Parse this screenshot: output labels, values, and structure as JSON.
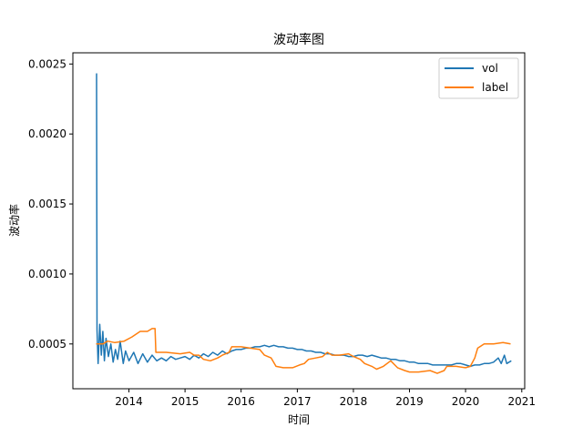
{
  "chart_data": {
    "type": "line",
    "title": "波动率图",
    "xlabel": "时间",
    "ylabel": "波动率",
    "xlim": [
      "2013-01-01",
      "2021-01-20"
    ],
    "ylim": [
      0.00018,
      0.00258
    ],
    "xticks": [
      "2014",
      "2015",
      "2016",
      "2017",
      "2018",
      "2019",
      "2020",
      "2021"
    ],
    "yticks": [
      "0.0005",
      "0.0010",
      "0.0015",
      "0.0020",
      "0.0025"
    ],
    "grid": false,
    "legend_position": "top-right",
    "series": [
      {
        "name": "vol",
        "color": "#1f77b4",
        "points": [
          [
            "2013-06-01",
            0.00243
          ],
          [
            "2013-06-04",
            0.00243
          ],
          [
            "2013-06-07",
            0.0006
          ],
          [
            "2013-06-14",
            0.00036
          ],
          [
            "2013-06-25",
            0.00064
          ],
          [
            "2013-07-05",
            0.00042
          ],
          [
            "2013-07-15",
            0.00059
          ],
          [
            "2013-07-25",
            0.00038
          ],
          [
            "2013-08-05",
            0.00054
          ],
          [
            "2013-08-20",
            0.00041
          ],
          [
            "2013-09-05",
            0.0005
          ],
          [
            "2013-09-20",
            0.00037
          ],
          [
            "2013-10-05",
            0.00046
          ],
          [
            "2013-10-20",
            0.00039
          ],
          [
            "2013-11-05",
            0.00052
          ],
          [
            "2013-11-25",
            0.00036
          ],
          [
            "2013-12-10",
            0.00045
          ],
          [
            "2014-01-01",
            0.00038
          ],
          [
            "2014-02-01",
            0.00044
          ],
          [
            "2014-03-01",
            0.00036
          ],
          [
            "2014-04-01",
            0.00043
          ],
          [
            "2014-05-01",
            0.00037
          ],
          [
            "2014-06-01",
            0.00042
          ],
          [
            "2014-07-01",
            0.00038
          ],
          [
            "2014-08-01",
            0.0004
          ],
          [
            "2014-09-01",
            0.00038
          ],
          [
            "2014-10-01",
            0.00041
          ],
          [
            "2014-11-01",
            0.00039
          ],
          [
            "2014-12-01",
            0.0004
          ],
          [
            "2015-01-01",
            0.00041
          ],
          [
            "2015-02-01",
            0.00039
          ],
          [
            "2015-03-01",
            0.00042
          ],
          [
            "2015-04-01",
            0.0004
          ],
          [
            "2015-05-01",
            0.00043
          ],
          [
            "2015-06-01",
            0.00041
          ],
          [
            "2015-07-01",
            0.00044
          ],
          [
            "2015-08-01",
            0.00042
          ],
          [
            "2015-09-01",
            0.00045
          ],
          [
            "2015-10-01",
            0.00043
          ],
          [
            "2015-11-01",
            0.00045
          ],
          [
            "2015-12-01",
            0.00046
          ],
          [
            "2016-01-01",
            0.00046
          ],
          [
            "2016-02-01",
            0.00047
          ],
          [
            "2016-03-01",
            0.00047
          ],
          [
            "2016-04-01",
            0.00048
          ],
          [
            "2016-05-01",
            0.00048
          ],
          [
            "2016-06-01",
            0.00049
          ],
          [
            "2016-07-01",
            0.00048
          ],
          [
            "2016-08-01",
            0.00049
          ],
          [
            "2016-09-01",
            0.00048
          ],
          [
            "2016-10-01",
            0.00048
          ],
          [
            "2016-11-01",
            0.00047
          ],
          [
            "2016-12-01",
            0.00047
          ],
          [
            "2017-01-01",
            0.00046
          ],
          [
            "2017-02-01",
            0.00046
          ],
          [
            "2017-03-01",
            0.00045
          ],
          [
            "2017-04-01",
            0.00045
          ],
          [
            "2017-05-01",
            0.00044
          ],
          [
            "2017-06-01",
            0.00044
          ],
          [
            "2017-07-01",
            0.00043
          ],
          [
            "2017-08-01",
            0.00043
          ],
          [
            "2017-09-01",
            0.00042
          ],
          [
            "2017-10-01",
            0.00042
          ],
          [
            "2017-11-01",
            0.00042
          ],
          [
            "2017-12-01",
            0.00041
          ],
          [
            "2018-01-01",
            0.00041
          ],
          [
            "2018-02-01",
            0.00042
          ],
          [
            "2018-03-01",
            0.00042
          ],
          [
            "2018-04-01",
            0.00041
          ],
          [
            "2018-05-01",
            0.00042
          ],
          [
            "2018-06-01",
            0.00041
          ],
          [
            "2018-07-01",
            0.0004
          ],
          [
            "2018-08-01",
            0.0004
          ],
          [
            "2018-09-01",
            0.00039
          ],
          [
            "2018-10-01",
            0.00039
          ],
          [
            "2018-11-01",
            0.00038
          ],
          [
            "2018-12-01",
            0.00038
          ],
          [
            "2019-01-01",
            0.00037
          ],
          [
            "2019-02-01",
            0.00037
          ],
          [
            "2019-03-01",
            0.00036
          ],
          [
            "2019-04-01",
            0.00036
          ],
          [
            "2019-05-01",
            0.00036
          ],
          [
            "2019-06-01",
            0.00035
          ],
          [
            "2019-07-01",
            0.00035
          ],
          [
            "2019-08-01",
            0.00035
          ],
          [
            "2019-09-01",
            0.00035
          ],
          [
            "2019-10-01",
            0.00035
          ],
          [
            "2019-11-01",
            0.00036
          ],
          [
            "2019-12-01",
            0.00036
          ],
          [
            "2020-01-01",
            0.00035
          ],
          [
            "2020-02-01",
            0.00034
          ],
          [
            "2020-03-01",
            0.00035
          ],
          [
            "2020-04-01",
            0.00035
          ],
          [
            "2020-05-01",
            0.00036
          ],
          [
            "2020-06-01",
            0.00036
          ],
          [
            "2020-07-01",
            0.00037
          ],
          [
            "2020-08-01",
            0.0004
          ],
          [
            "2020-08-20",
            0.00036
          ],
          [
            "2020-09-10",
            0.00042
          ],
          [
            "2020-09-25",
            0.00036
          ],
          [
            "2020-10-10",
            0.00037
          ],
          [
            "2020-10-25",
            0.00038
          ]
        ]
      },
      {
        "name": "label",
        "color": "#ff7f0e",
        "points": [
          [
            "2013-06-01",
            0.0005
          ],
          [
            "2013-07-15",
            0.0005
          ],
          [
            "2013-08-15",
            0.00052
          ],
          [
            "2013-10-01",
            0.00051
          ],
          [
            "2013-12-01",
            0.00052
          ],
          [
            "2014-01-20",
            0.00055
          ],
          [
            "2014-03-15",
            0.00059
          ],
          [
            "2014-05-01",
            0.00059
          ],
          [
            "2014-06-01",
            0.00061
          ],
          [
            "2014-06-20",
            0.00061
          ],
          [
            "2014-06-25",
            0.00044
          ],
          [
            "2014-09-01",
            0.00044
          ],
          [
            "2014-12-01",
            0.00043
          ],
          [
            "2015-02-01",
            0.00044
          ],
          [
            "2015-03-01",
            0.00042
          ],
          [
            "2015-04-01",
            0.00042
          ],
          [
            "2015-05-01",
            0.00039
          ],
          [
            "2015-06-15",
            0.00038
          ],
          [
            "2015-08-01",
            0.0004
          ],
          [
            "2015-09-01",
            0.00042
          ],
          [
            "2015-10-15",
            0.00044
          ],
          [
            "2015-11-01",
            0.00048
          ],
          [
            "2016-01-01",
            0.00048
          ],
          [
            "2016-03-01",
            0.00047
          ],
          [
            "2016-05-01",
            0.00046
          ],
          [
            "2016-06-01",
            0.00042
          ],
          [
            "2016-07-15",
            0.0004
          ],
          [
            "2016-08-15",
            0.00034
          ],
          [
            "2016-10-01",
            0.00033
          ],
          [
            "2016-12-01",
            0.00033
          ],
          [
            "2017-01-15",
            0.00035
          ],
          [
            "2017-02-15",
            0.00036
          ],
          [
            "2017-03-15",
            0.00039
          ],
          [
            "2017-05-01",
            0.0004
          ],
          [
            "2017-06-15",
            0.00041
          ],
          [
            "2017-07-15",
            0.00044
          ],
          [
            "2017-08-15",
            0.00042
          ],
          [
            "2017-10-01",
            0.00042
          ],
          [
            "2017-12-01",
            0.00043
          ],
          [
            "2018-01-01",
            0.00041
          ],
          [
            "2018-02-15",
            0.00039
          ],
          [
            "2018-03-15",
            0.00036
          ],
          [
            "2018-05-01",
            0.00034
          ],
          [
            "2018-06-01",
            0.00032
          ],
          [
            "2018-07-15",
            0.00034
          ],
          [
            "2018-09-01",
            0.00038
          ],
          [
            "2018-10-15",
            0.00033
          ],
          [
            "2018-12-01",
            0.00031
          ],
          [
            "2019-01-01",
            0.0003
          ],
          [
            "2019-03-01",
            0.0003
          ],
          [
            "2019-05-15",
            0.00031
          ],
          [
            "2019-07-01",
            0.00029
          ],
          [
            "2019-08-15",
            0.00031
          ],
          [
            "2019-09-01",
            0.00034
          ],
          [
            "2019-11-01",
            0.00034
          ],
          [
            "2020-01-01",
            0.00033
          ],
          [
            "2020-02-01",
            0.00034
          ],
          [
            "2020-03-01",
            0.0004
          ],
          [
            "2020-03-20",
            0.00047
          ],
          [
            "2020-05-01",
            0.0005
          ],
          [
            "2020-07-01",
            0.0005
          ],
          [
            "2020-09-01",
            0.00051
          ],
          [
            "2020-10-20",
            0.0005
          ]
        ]
      }
    ]
  }
}
